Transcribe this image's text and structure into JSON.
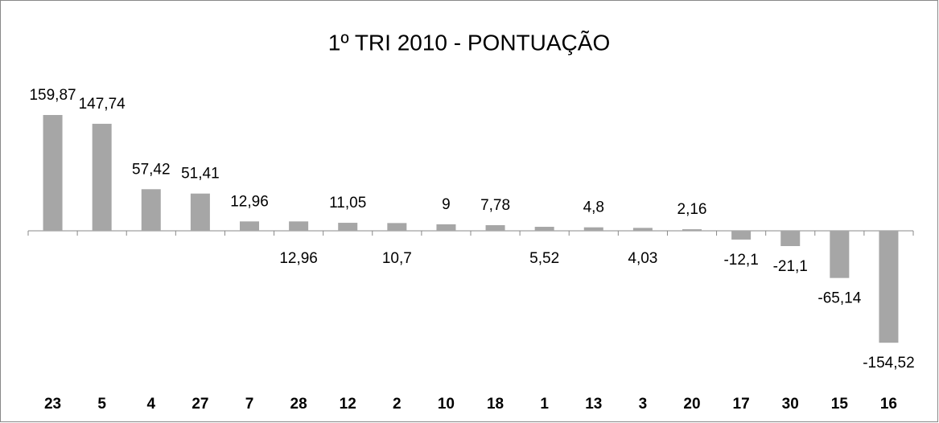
{
  "chart_data": {
    "type": "bar",
    "title": "1º TRI 2010 - PONTUAÇÃO",
    "categories": [
      "23",
      "5",
      "4",
      "27",
      "7",
      "28",
      "12",
      "2",
      "10",
      "18",
      "1",
      "13",
      "3",
      "20",
      "17",
      "30",
      "15",
      "16"
    ],
    "values": [
      159.87,
      147.74,
      57.42,
      51.41,
      12.96,
      12.96,
      11.05,
      10.7,
      9,
      7.78,
      5.52,
      4.8,
      4.03,
      2.16,
      -12.1,
      -21.1,
      -65.14,
      -154.52
    ],
    "value_labels": [
      "159,87",
      "147,74",
      "57,42",
      "51,41",
      "12,96",
      "12,96",
      "11,05",
      "10,7",
      "9",
      "7,78",
      "5,52",
      "4,8",
      "4,03",
      "2,16",
      "-12,1",
      "-21,1",
      "-65,14",
      "-154,52"
    ],
    "color": "#a6a6a6"
  }
}
